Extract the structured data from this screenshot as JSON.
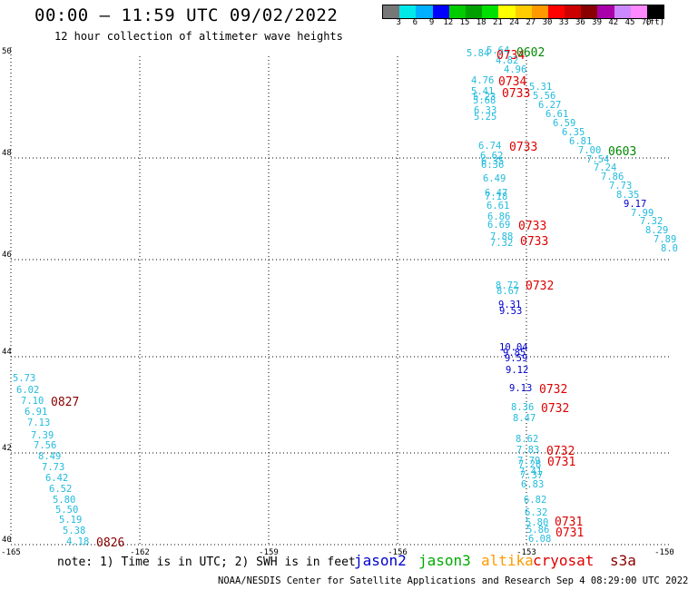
{
  "title": "00:00 – 11:59 UTC 09/02/2022",
  "subtitle": "12 hour collection of altimeter wave heights",
  "colorbar": {
    "colors": [
      "#777777",
      "#00e8e8",
      "#00b0ff",
      "#0000ff",
      "#00cc00",
      "#00a000",
      "#00e000",
      "#ffff00",
      "#ffcc00",
      "#ff9900",
      "#ff0000",
      "#cc0000",
      "#880000",
      "#aa00aa",
      "#cc88ff",
      "#ff88ff",
      "#000000"
    ],
    "labels": [
      "3",
      "6",
      "9",
      "12",
      "15",
      "18",
      "21",
      "24",
      "27",
      "30",
      "33",
      "36",
      "39",
      "42",
      "45",
      "70",
      "(ft)"
    ]
  },
  "axes": {
    "lon_ticks": [
      "-165",
      "-162",
      "-159",
      "-156",
      "-153",
      "-150"
    ],
    "lat_ticks": [
      "50",
      "48",
      "46",
      "44",
      "42",
      "40"
    ]
  },
  "swh_points": [
    {
      "v": "5.84",
      "c": "#22bbdd"
    },
    {
      "v": "5.64",
      "c": "#22bbdd"
    },
    {
      "v": "4.82",
      "c": "#22bbdd"
    },
    {
      "v": "4.96",
      "c": "#22bbdd"
    },
    {
      "v": "4.76",
      "c": "#22bbdd"
    },
    {
      "v": "5.41",
      "c": "#22bbdd"
    },
    {
      "v": "5.23",
      "c": "#22bbdd"
    },
    {
      "v": "5.68",
      "c": "#22bbdd"
    },
    {
      "v": "6.33",
      "c": "#22bbdd"
    },
    {
      "v": "5.25",
      "c": "#22bbdd"
    },
    {
      "v": "5.31",
      "c": "#22bbdd"
    },
    {
      "v": "5.56",
      "c": "#22bbdd"
    },
    {
      "v": "6.27",
      "c": "#22bbdd"
    },
    {
      "v": "6.61",
      "c": "#22bbdd"
    },
    {
      "v": "6.59",
      "c": "#22bbdd"
    },
    {
      "v": "6.35",
      "c": "#22bbdd"
    },
    {
      "v": "6.81",
      "c": "#22bbdd"
    },
    {
      "v": "7.00",
      "c": "#22bbdd"
    },
    {
      "v": "7.54",
      "c": "#22bbdd"
    },
    {
      "v": "7.24",
      "c": "#22bbdd"
    },
    {
      "v": "7.86",
      "c": "#22bbdd"
    },
    {
      "v": "7.73",
      "c": "#22bbdd"
    },
    {
      "v": "8.35",
      "c": "#22bbdd"
    },
    {
      "v": "9.17",
      "c": "#0000cc"
    },
    {
      "v": "7.99",
      "c": "#22bbdd"
    },
    {
      "v": "7.32",
      "c": "#22bbdd"
    },
    {
      "v": "8.29",
      "c": "#22bbdd"
    },
    {
      "v": "7.89",
      "c": "#22bbdd"
    },
    {
      "v": "8.0",
      "c": "#22bbdd"
    },
    {
      "v": "6.74",
      "c": "#22bbdd"
    },
    {
      "v": "6.62",
      "c": "#22bbdd"
    },
    {
      "v": "6.35",
      "c": "#22bbdd"
    },
    {
      "v": "6.36",
      "c": "#22bbdd"
    },
    {
      "v": "6.49",
      "c": "#22bbdd"
    },
    {
      "v": "6.47",
      "c": "#22bbdd"
    },
    {
      "v": "7.18",
      "c": "#22bbdd"
    },
    {
      "v": "6.61",
      "c": "#22bbdd"
    },
    {
      "v": "6.86",
      "c": "#22bbdd"
    },
    {
      "v": "6.69",
      "c": "#22bbdd"
    },
    {
      "v": "7.88",
      "c": "#22bbdd"
    },
    {
      "v": "7.32",
      "c": "#22bbdd"
    },
    {
      "v": "8.72",
      "c": "#22bbdd"
    },
    {
      "v": "8.67",
      "c": "#22bbdd"
    },
    {
      "v": "9.31",
      "c": "#0000cc"
    },
    {
      "v": "9.53",
      "c": "#0000cc"
    },
    {
      "v": "10.04",
      "c": "#0000cc"
    },
    {
      "v": "9.85",
      "c": "#0000cc"
    },
    {
      "v": "9.59",
      "c": "#0000cc"
    },
    {
      "v": "9.12",
      "c": "#0000cc"
    },
    {
      "v": "9.13",
      "c": "#0000cc"
    },
    {
      "v": "8.36",
      "c": "#22bbdd"
    },
    {
      "v": "8.47",
      "c": "#22bbdd"
    },
    {
      "v": "8.62",
      "c": "#22bbdd"
    },
    {
      "v": "7.83",
      "c": "#22bbdd"
    },
    {
      "v": "7.79",
      "c": "#22bbdd"
    },
    {
      "v": "7.28",
      "c": "#22bbdd"
    },
    {
      "v": "7.41",
      "c": "#22bbdd"
    },
    {
      "v": "7.37",
      "c": "#22bbdd"
    },
    {
      "v": "6.83",
      "c": "#22bbdd"
    },
    {
      "v": "6.82",
      "c": "#22bbdd"
    },
    {
      "v": "6.32",
      "c": "#22bbdd"
    },
    {
      "v": "5.80",
      "c": "#22bbdd"
    },
    {
      "v": "5.86",
      "c": "#22bbdd"
    },
    {
      "v": "6.08",
      "c": "#22bbdd"
    },
    {
      "v": "5.73",
      "c": "#22bbdd"
    },
    {
      "v": "6.02",
      "c": "#22bbdd"
    },
    {
      "v": "7.10",
      "c": "#22bbdd"
    },
    {
      "v": "6.91",
      "c": "#22bbdd"
    },
    {
      "v": "7.13",
      "c": "#22bbdd"
    },
    {
      "v": "7.39",
      "c": "#22bbdd"
    },
    {
      "v": "7.56",
      "c": "#22bbdd"
    },
    {
      "v": "8.49",
      "c": "#22bbdd"
    },
    {
      "v": "7.73",
      "c": "#22bbdd"
    },
    {
      "v": "6.42",
      "c": "#22bbdd"
    },
    {
      "v": "6.52",
      "c": "#22bbdd"
    },
    {
      "v": "5.80",
      "c": "#22bbdd"
    },
    {
      "v": "5.50",
      "c": "#22bbdd"
    },
    {
      "v": "5.19",
      "c": "#22bbdd"
    },
    {
      "v": "5.38",
      "c": "#22bbdd"
    },
    {
      "v": "4.18",
      "c": "#22bbdd"
    }
  ],
  "time_labels": [
    {
      "t": "0734",
      "c": "#dd0000"
    },
    {
      "t": "0602",
      "c": "#008800"
    },
    {
      "t": "0734",
      "c": "#dd0000"
    },
    {
      "t": "0733",
      "c": "#dd0000"
    },
    {
      "t": "0733",
      "c": "#dd0000"
    },
    {
      "t": "0603",
      "c": "#008800"
    },
    {
      "t": "0733",
      "c": "#dd0000"
    },
    {
      "t": "0733",
      "c": "#dd0000"
    },
    {
      "t": "0732",
      "c": "#dd0000"
    },
    {
      "t": "0732",
      "c": "#dd0000"
    },
    {
      "t": "0732",
      "c": "#dd0000"
    },
    {
      "t": "0732",
      "c": "#dd0000"
    },
    {
      "t": "0731",
      "c": "#dd0000"
    },
    {
      "t": "0731",
      "c": "#dd0000"
    },
    {
      "t": "0731",
      "c": "#dd0000"
    },
    {
      "t": "0827",
      "c": "#880000"
    },
    {
      "t": "0826",
      "c": "#880000"
    }
  ],
  "legend": [
    {
      "name": "jason2",
      "color": "#0000cc"
    },
    {
      "name": "jason3",
      "color": "#00aa00"
    },
    {
      "name": "altika",
      "color": "#ff9900"
    },
    {
      "name": "cryosat",
      "color": "#dd0000"
    },
    {
      "name": "s3a",
      "color": "#880000"
    }
  ],
  "notes": "note: 1) Time is in UTC; 2) SWH is in feet",
  "footer": "NOAA/NESDIS Center for Satellite Applications and Research   Sep  4 08:29:00 UTC 2022"
}
